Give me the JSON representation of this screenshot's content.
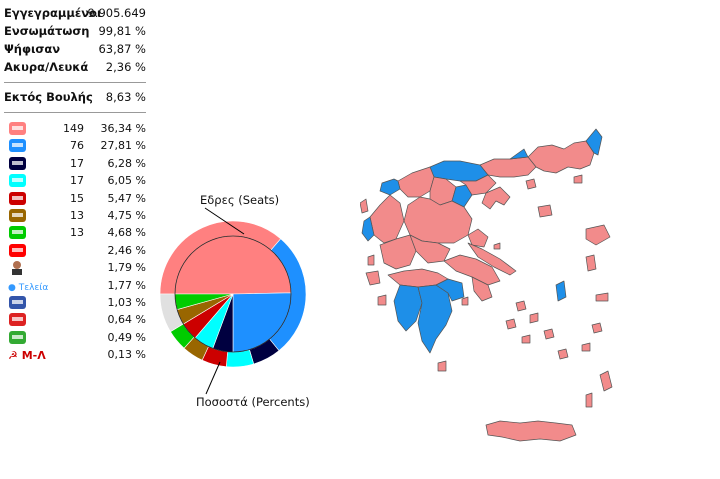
{
  "summary": {
    "registered": {
      "label": "Εγγεγραμμένοι",
      "value": "9.905.649"
    },
    "integration": {
      "label": "Ενσωμάτωση",
      "value": "99,81 %"
    },
    "voted": {
      "label": "Ψήφισαν",
      "value": "63,87 %"
    },
    "invalid_blank": {
      "label": "Ακυρα/Λευκά",
      "value": "2,36 %"
    },
    "outside_parliament": {
      "label": "Εκτός Βουλής",
      "value": "8,63 %"
    }
  },
  "parties": [
    {
      "icon": "syriza-logo-icon",
      "seats": "149",
      "pct": "36,34 %",
      "color": "#ff8080"
    },
    {
      "icon": "nd-logo-icon",
      "seats": "76",
      "pct": "27,81 %",
      "color": "#1e90ff"
    },
    {
      "icon": "golden-dawn-logo-icon",
      "seats": "17",
      "pct": "6,28 %",
      "color": "#000040"
    },
    {
      "icon": "potami-logo-icon",
      "seats": "17",
      "pct": "6,05 %",
      "color": "#00ffff"
    },
    {
      "icon": "kke-logo-icon",
      "seats": "15",
      "pct": "5,47 %",
      "color": "#cc0000"
    },
    {
      "icon": "anel-logo-icon",
      "seats": "13",
      "pct": "4,75 %",
      "color": "#996600"
    },
    {
      "icon": "pasok-logo-icon",
      "seats": "13",
      "pct": "4,68 %",
      "color": "#00cc00"
    },
    {
      "icon": "kidiso-logo-icon",
      "seats": "",
      "pct": "2,46 %",
      "color": "#ff0000"
    },
    {
      "icon": "person-logo-icon",
      "seats": "",
      "pct": "1,79 %",
      "color": "#444444"
    },
    {
      "icon": "teleia-logo-icon",
      "seats": "",
      "pct": "1,77 %",
      "color": "#3399ff"
    },
    {
      "icon": "emblem-logo-icon",
      "seats": "",
      "pct": "1,03 %",
      "color": "#3355aa"
    },
    {
      "icon": "map-logo-icon",
      "seats": "",
      "pct": "0,64 %",
      "color": "#dd2222"
    },
    {
      "icon": "green-logo-icon",
      "seats": "",
      "pct": "0,49 %",
      "color": "#33aa33"
    },
    {
      "icon": "ml-logo-icon",
      "seats": "",
      "pct": "0,13 %",
      "color": "#cc0000",
      "text": "Μ-Λ"
    }
  ],
  "teleia_text": "Τελεία",
  "chart_data": {
    "type": "pie",
    "annotations": {
      "seats": "Εδρες (Seats)",
      "percents": "Ποσοστά (Percents)"
    },
    "seats": {
      "values": [
        149,
        76,
        17,
        17,
        15,
        13,
        13
      ],
      "colors": [
        "#ff8080",
        "#1e90ff",
        "#000040",
        "#00ffff",
        "#cc0000",
        "#996600",
        "#00cc00"
      ]
    },
    "percents": {
      "values": [
        36.34,
        27.81,
        6.28,
        6.05,
        5.47,
        4.75,
        4.68,
        8.63
      ],
      "colors": [
        "#ff8080",
        "#1e90ff",
        "#000040",
        "#00ffff",
        "#cc0000",
        "#996600",
        "#00cc00",
        "#e0e0e0"
      ]
    }
  },
  "map": {
    "left_color": "#f28b8b",
    "right_color": "#1e8fe8",
    "border_color": "#555555"
  }
}
